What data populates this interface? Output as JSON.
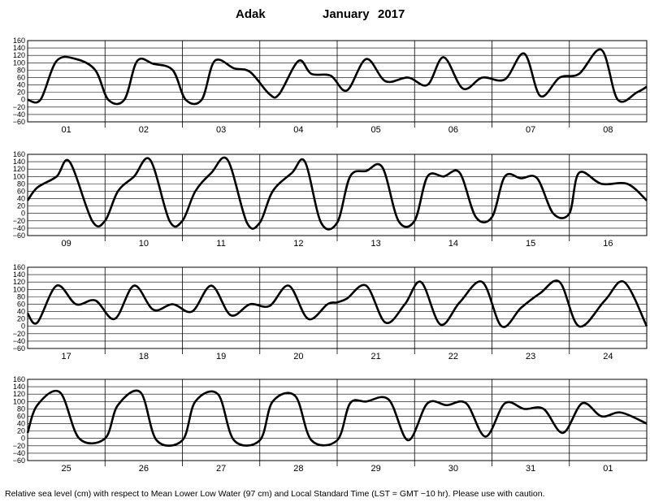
{
  "chart_data": {
    "type": "line",
    "station": "Adak",
    "month": "January",
    "year": "2017",
    "ylabel_note": "Relative sea level (cm) with respect to Mean Lower Low Water (97 cm) and Local Standard Time (LST = GMT −10 hr). Please use with caution.",
    "ylim": [
      -60,
      160
    ],
    "yticks": [
      "160",
      "140",
      "120",
      "100",
      "80",
      "60",
      "40",
      "20",
      "0",
      "−20",
      "−40",
      "−60"
    ],
    "grid": true,
    "line_color": "#000000",
    "panels": [
      {
        "days": [
          "01",
          "02",
          "03",
          "04",
          "05",
          "06",
          "07",
          "08"
        ],
        "x_hours": [
          0,
          4,
          9,
          15,
          21,
          25,
          30,
          34,
          39,
          45,
          49,
          54,
          58,
          64,
          69,
          75,
          78,
          84,
          88,
          94,
          99,
          105,
          111,
          118,
          124,
          129,
          135,
          141,
          148,
          154,
          159,
          165,
          171,
          178,
          183,
          189,
          192
        ],
        "y": [
          0,
          0,
          105,
          110,
          80,
          0,
          0,
          105,
          97,
          80,
          0,
          0,
          105,
          85,
          75,
          15,
          15,
          105,
          70,
          65,
          25,
          110,
          50,
          60,
          40,
          115,
          30,
          60,
          55,
          125,
          10,
          60,
          70,
          135,
          0,
          20,
          35
        ]
      },
      {
        "days": [
          "09",
          "10",
          "11",
          "12",
          "13",
          "14",
          "15",
          "16"
        ],
        "x_hours": [
          0,
          3,
          9,
          13,
          20,
          24,
          28,
          33,
          38,
          44,
          48,
          52,
          57,
          62,
          68,
          72,
          76,
          82,
          86,
          91,
          96,
          100,
          105,
          110,
          115,
          120,
          124,
          129,
          134,
          139,
          144,
          148,
          153,
          158,
          163,
          168,
          171,
          178,
          186,
          192
        ],
        "y": [
          35,
          70,
          100,
          140,
          -20,
          -20,
          60,
          100,
          145,
          -20,
          -20,
          60,
          110,
          145,
          -25,
          -25,
          60,
          110,
          140,
          -25,
          -25,
          100,
          115,
          125,
          -20,
          -20,
          100,
          100,
          110,
          -10,
          -10,
          100,
          95,
          95,
          0,
          0,
          110,
          80,
          80,
          35
        ]
      },
      {
        "days": [
          "17",
          "18",
          "19",
          "20",
          "21",
          "22",
          "23",
          "24"
        ],
        "x_hours": [
          0,
          3,
          9,
          15,
          21,
          27,
          33,
          39,
          45,
          51,
          57,
          63,
          69,
          75,
          81,
          87,
          93,
          96,
          99,
          105,
          111,
          117,
          122,
          128,
          134,
          141,
          147,
          153,
          159,
          165,
          171,
          179,
          185,
          192
        ],
        "y": [
          35,
          10,
          110,
          60,
          70,
          20,
          110,
          45,
          60,
          40,
          110,
          30,
          60,
          55,
          110,
          20,
          60,
          65,
          75,
          110,
          10,
          60,
          120,
          5,
          65,
          120,
          0,
          50,
          90,
          120,
          0,
          70,
          120,
          0
        ]
      },
      {
        "days": [
          "25",
          "26",
          "27",
          "28",
          "29",
          "30",
          "31",
          "01"
        ],
        "x_hours": [
          0,
          3,
          10,
          16,
          24,
          28,
          35,
          40,
          48,
          52,
          59,
          64,
          72,
          76,
          83,
          88,
          96,
          100,
          105,
          112,
          118,
          124,
          130,
          136,
          142,
          148,
          154,
          160,
          166,
          172,
          178,
          184,
          192
        ],
        "y": [
          15,
          90,
          125,
          0,
          0,
          90,
          125,
          -5,
          -5,
          100,
          120,
          -5,
          -5,
          100,
          115,
          -5,
          -5,
          95,
          100,
          105,
          -5,
          95,
          90,
          95,
          5,
          95,
          80,
          80,
          15,
          95,
          60,
          70,
          40
        ]
      }
    ]
  }
}
